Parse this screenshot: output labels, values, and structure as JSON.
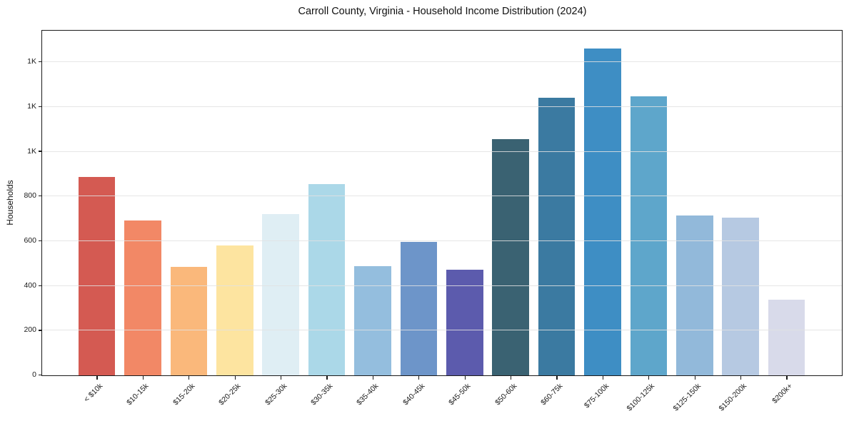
{
  "chart_data": {
    "type": "bar",
    "title": "Carroll County, Virginia - Household Income Distribution (2024)",
    "xlabel": "",
    "ylabel": "Households",
    "categories": [
      "< $10k",
      "$10-15k",
      "$15-20k",
      "$20-25k",
      "$25-30k",
      "$30-35k",
      "$35-40k",
      "$40-45k",
      "$45-50k",
      "$50-60k",
      "$60-75k",
      "$75-100k",
      "$100-125k",
      "$125-150k",
      "$150-200k",
      "$200k+"
    ],
    "values": [
      888,
      692,
      485,
      582,
      720,
      856,
      488,
      595,
      472,
      1056,
      1240,
      1460,
      1247,
      716,
      704,
      338
    ],
    "colors": [
      "#d45a52",
      "#f28866",
      "#fab87b",
      "#fde4a0",
      "#dfeef4",
      "#abd8e8",
      "#94bede",
      "#6d95c9",
      "#5c5bad",
      "#3a6272",
      "#3b7aa1",
      "#3e8ec4",
      "#5ea6cb",
      "#92b9da",
      "#b6c9e2",
      "#d8daea"
    ],
    "ylim": [
      0,
      1538
    ],
    "yticks": [
      {
        "value": 0,
        "label": "0"
      },
      {
        "value": 200,
        "label": "200"
      },
      {
        "value": 400,
        "label": "400"
      },
      {
        "value": 600,
        "label": "600"
      },
      {
        "value": 800,
        "label": "800"
      },
      {
        "value": 1000,
        "label": "1K"
      },
      {
        "value": 1200,
        "label": "1K"
      },
      {
        "value": 1400,
        "label": "1K"
      }
    ],
    "grid": "horizontal",
    "legend_position": "none",
    "background": "#ffffff",
    "spine_color": "#1a1a1a"
  }
}
